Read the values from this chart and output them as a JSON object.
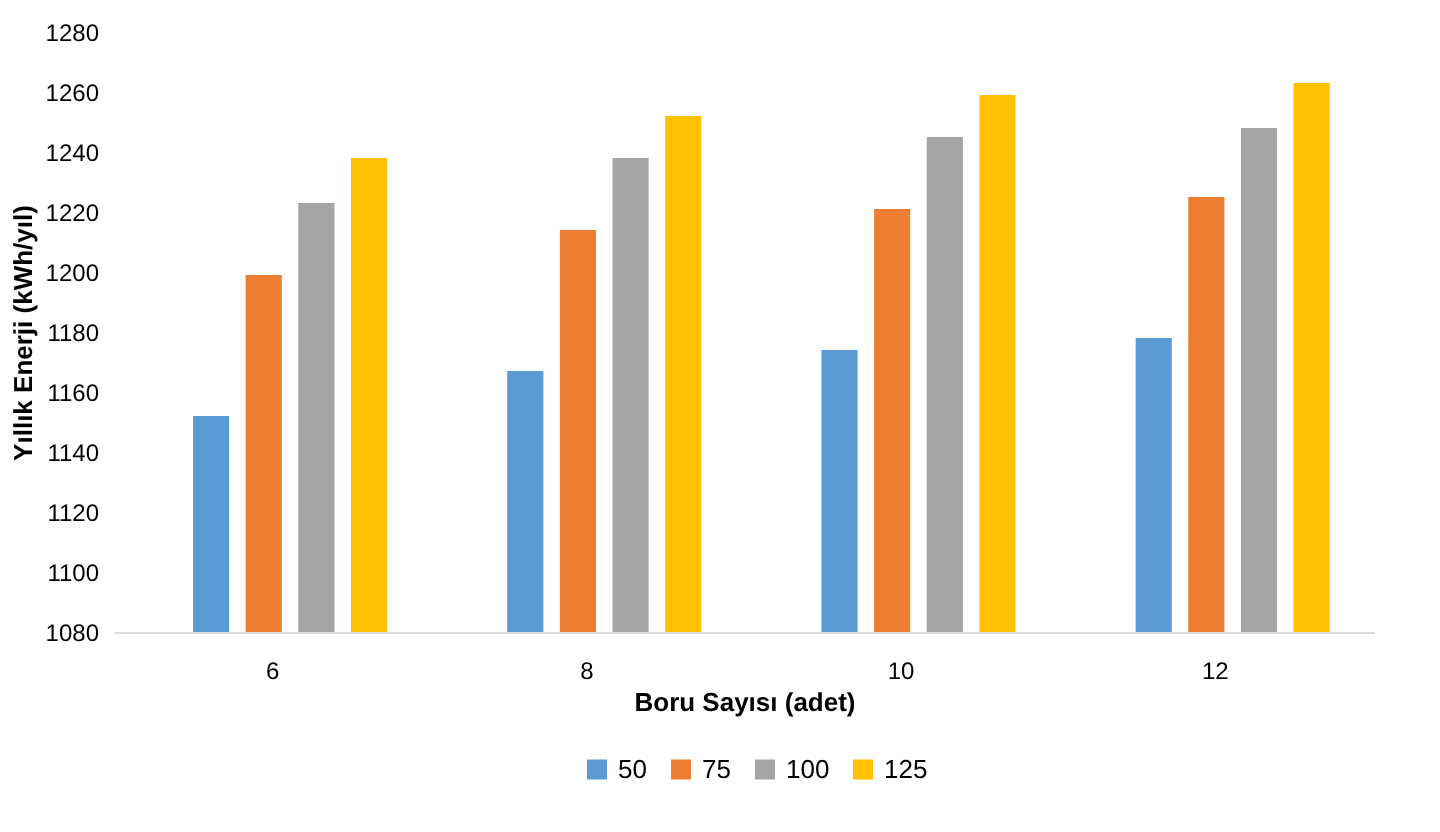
{
  "chart_data": {
    "type": "bar",
    "xlabel": "Boru Sayısı (adet)",
    "ylabel": "Yıllık Enerji (kWh/yıl)",
    "categories": [
      "6",
      "8",
      "10",
      "12"
    ],
    "series": [
      {
        "name": "50",
        "color": "#5b9bd5",
        "values": [
          1152,
          1167,
          1174,
          1178
        ]
      },
      {
        "name": "75",
        "color": "#ed7d31",
        "values": [
          1199,
          1214,
          1221,
          1225
        ]
      },
      {
        "name": "100",
        "color": "#a5a5a5",
        "values": [
          1223,
          1238,
          1245,
          1248
        ]
      },
      {
        "name": "125",
        "color": "#ffc000",
        "values": [
          1238,
          1252,
          1259,
          1263
        ]
      }
    ],
    "ylim": [
      1080,
      1280
    ],
    "yticks": [
      1080,
      1100,
      1120,
      1140,
      1160,
      1180,
      1200,
      1220,
      1240,
      1260,
      1280
    ],
    "grid": false,
    "legend": "bottom"
  }
}
